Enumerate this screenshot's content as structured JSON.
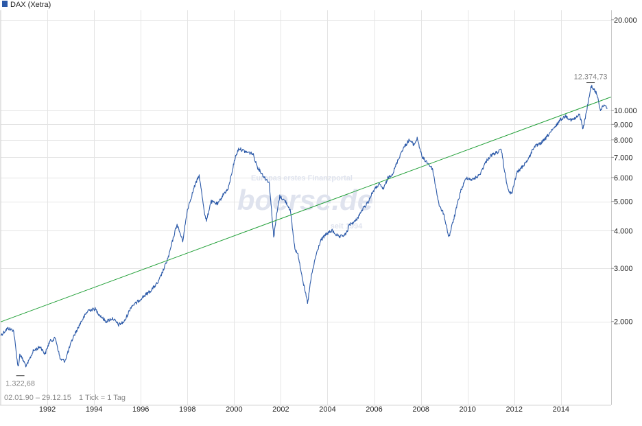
{
  "chart_data": {
    "type": "line",
    "title": "DAX (Xetra)",
    "legend": {
      "label": "DAX (Xetra)",
      "color": "#2b59a8",
      "position": "top-left"
    },
    "y_scale": "log",
    "ylim": [
      1060,
      21500
    ],
    "xlim": [
      1990.0,
      2016.15
    ],
    "y_ticks": [
      {
        "value": 2000,
        "label": "2.000"
      },
      {
        "value": 3000,
        "label": "3.000"
      },
      {
        "value": 4000,
        "label": "4.000"
      },
      {
        "value": 5000,
        "label": "5.000"
      },
      {
        "value": 6000,
        "label": "6.000"
      },
      {
        "value": 7000,
        "label": "7.000"
      },
      {
        "value": 8000,
        "label": "8.000"
      },
      {
        "value": 9000,
        "label": "9.000"
      },
      {
        "value": 10000,
        "label": "10.000"
      },
      {
        "value": 20000,
        "label": "20.000"
      }
    ],
    "x_ticks": [
      {
        "value": 1992,
        "label": "1992"
      },
      {
        "value": 1994,
        "label": "1994"
      },
      {
        "value": 1996,
        "label": "1996"
      },
      {
        "value": 1998,
        "label": "1998"
      },
      {
        "value": 2000,
        "label": "2000"
      },
      {
        "value": 2002,
        "label": "2002"
      },
      {
        "value": 2004,
        "label": "2004"
      },
      {
        "value": 2006,
        "label": "2006"
      },
      {
        "value": 2008,
        "label": "2008"
      },
      {
        "value": 2010,
        "label": "2010"
      },
      {
        "value": 2012,
        "label": "2012"
      },
      {
        "value": 2014,
        "label": "2014"
      }
    ],
    "series": [
      {
        "name": "DAX (Xetra)",
        "color": "#2b59a8",
        "x": [
          1990.0,
          1990.3,
          1990.55,
          1990.75,
          1990.82,
          1991.1,
          1991.4,
          1991.7,
          1991.9,
          1992.1,
          1992.35,
          1992.55,
          1992.75,
          1992.85,
          1993.1,
          1993.45,
          1993.75,
          1994.05,
          1994.2,
          1994.5,
          1994.8,
          1995.05,
          1995.3,
          1995.6,
          1995.8,
          1996.05,
          1996.4,
          1996.75,
          1997.0,
          1997.2,
          1997.4,
          1997.55,
          1997.8,
          1998.0,
          1998.3,
          1998.5,
          1998.75,
          1998.82,
          1999.0,
          1999.3,
          1999.55,
          1999.75,
          1999.95,
          2000.05,
          2000.2,
          2000.5,
          2000.8,
          2001.0,
          2001.3,
          2001.5,
          2001.7,
          2001.8,
          2001.95,
          2002.2,
          2002.4,
          2002.6,
          2002.75,
          2002.85,
          2003.0,
          2003.15,
          2003.3,
          2003.5,
          2003.7,
          2003.95,
          2004.2,
          2004.5,
          2004.8,
          2004.95,
          2005.2,
          2005.5,
          2005.75,
          2005.95,
          2006.2,
          2006.4,
          2006.6,
          2006.8,
          2007.0,
          2007.2,
          2007.5,
          2007.7,
          2007.85,
          2008.05,
          2008.3,
          2008.5,
          2008.65,
          2008.8,
          2008.95,
          2009.05,
          2009.2,
          2009.45,
          2009.7,
          2009.95,
          2010.2,
          2010.5,
          2010.8,
          2011.0,
          2011.3,
          2011.45,
          2011.6,
          2011.75,
          2011.9,
          2012.1,
          2012.4,
          2012.6,
          2012.85,
          2013.05,
          2013.3,
          2013.5,
          2013.75,
          2013.95,
          2014.2,
          2014.45,
          2014.6,
          2014.8,
          2014.95,
          2015.1,
          2015.3,
          2015.55,
          2015.7,
          2015.85,
          2015.99
        ],
        "values": [
          1800,
          1900,
          1870,
          1400,
          1560,
          1420,
          1600,
          1650,
          1560,
          1720,
          1760,
          1500,
          1480,
          1560,
          1770,
          2000,
          2180,
          2200,
          2120,
          2000,
          2050,
          1950,
          2000,
          2250,
          2300,
          2400,
          2520,
          2700,
          3000,
          3300,
          3800,
          4200,
          3700,
          4700,
          5600,
          6100,
          4500,
          4300,
          5000,
          4900,
          5300,
          5500,
          6500,
          7000,
          7500,
          7300,
          7200,
          6500,
          6000,
          5800,
          3800,
          4400,
          5200,
          5000,
          4700,
          3500,
          3300,
          3000,
          2600,
          2300,
          2800,
          3300,
          3700,
          3900,
          4000,
          3800,
          3900,
          4200,
          4300,
          4700,
          5000,
          5400,
          5700,
          5500,
          6000,
          6200,
          6800,
          7400,
          8000,
          7700,
          8100,
          7000,
          6700,
          6400,
          5500,
          4800,
          4600,
          4300,
          3800,
          4500,
          5400,
          6000,
          5900,
          6100,
          6800,
          7100,
          7300,
          7400,
          6200,
          5400,
          5300,
          6200,
          6600,
          6900,
          7600,
          7700,
          8000,
          8400,
          8800,
          9300,
          9600,
          9300,
          9400,
          9700,
          8700,
          10000,
          12100,
          11300,
          10000,
          10500,
          10200
        ],
        "min_point": {
          "x": 1990.84,
          "value": 1322.68,
          "label": "1.322,68"
        },
        "max_point": {
          "x": 2015.27,
          "value": 12374.73,
          "label": "12.374,73"
        }
      },
      {
        "name": "Trendlinie",
        "color": "#22a038",
        "x": [
          1990.0,
          2016.15
        ],
        "values": [
          1995,
          11100
        ]
      }
    ],
    "annotations": {
      "date_range": "02.01.90 – 29.12.15",
      "tick_info": "1 Tick = 1 Tag",
      "watermark_main": "boerse.de",
      "watermark_top": "Europas erstes Finanzportal",
      "watermark_bottom": "seit 1994"
    },
    "grid": true
  }
}
